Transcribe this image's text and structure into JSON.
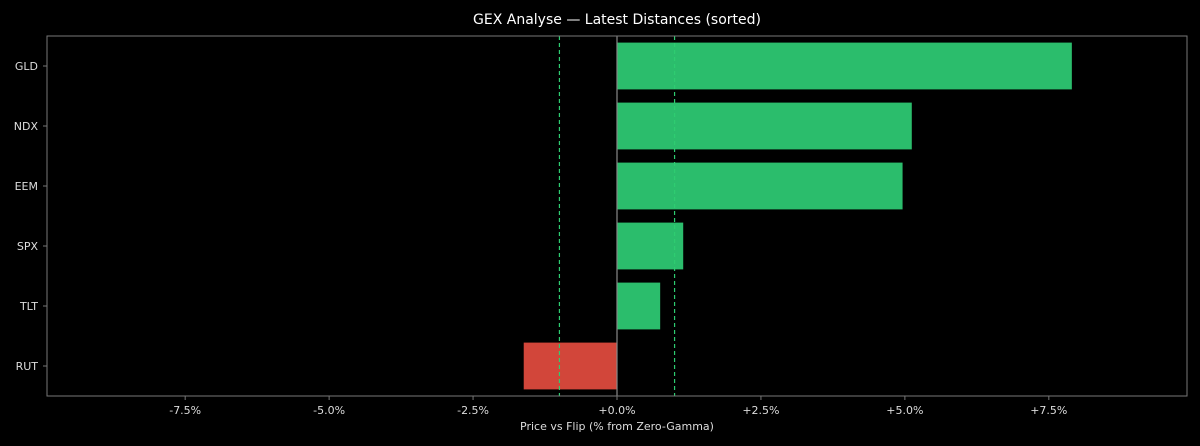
{
  "chart_data": {
    "type": "bar",
    "orientation": "horizontal",
    "title": "GEX Analyse — Latest Distances (sorted)",
    "xlabel": "Price vs Flip (% from Zero-Gamma)",
    "ylabel": "",
    "categories": [
      "GLD",
      "NDX",
      "EEM",
      "SPX",
      "TLT",
      "RUT"
    ],
    "values": [
      7.9,
      5.12,
      4.96,
      1.15,
      0.75,
      -1.62
    ],
    "xlim": [
      -9.9,
      9.9
    ],
    "xticks": [
      -7.5,
      -5.0,
      -2.5,
      0.0,
      2.5,
      5.0,
      7.5
    ],
    "xtick_labels": [
      "-7.5%",
      "-5.0%",
      "-2.5%",
      "+0.0%",
      "+2.5%",
      "+5.0%",
      "+7.5%"
    ],
    "reference_lines": [
      {
        "x": 0.0,
        "style": "solid",
        "color": "#888888"
      },
      {
        "x": -1.0,
        "style": "dashed",
        "color": "#2ecc71"
      },
      {
        "x": 1.0,
        "style": "dashed",
        "color": "#2ecc71"
      }
    ],
    "colors": {
      "positive": "#2bbd6c",
      "negative": "#d2463a",
      "background": "#000000",
      "frame": "#777777",
      "text": "#dddddd"
    },
    "grid": false,
    "legend": "none"
  }
}
